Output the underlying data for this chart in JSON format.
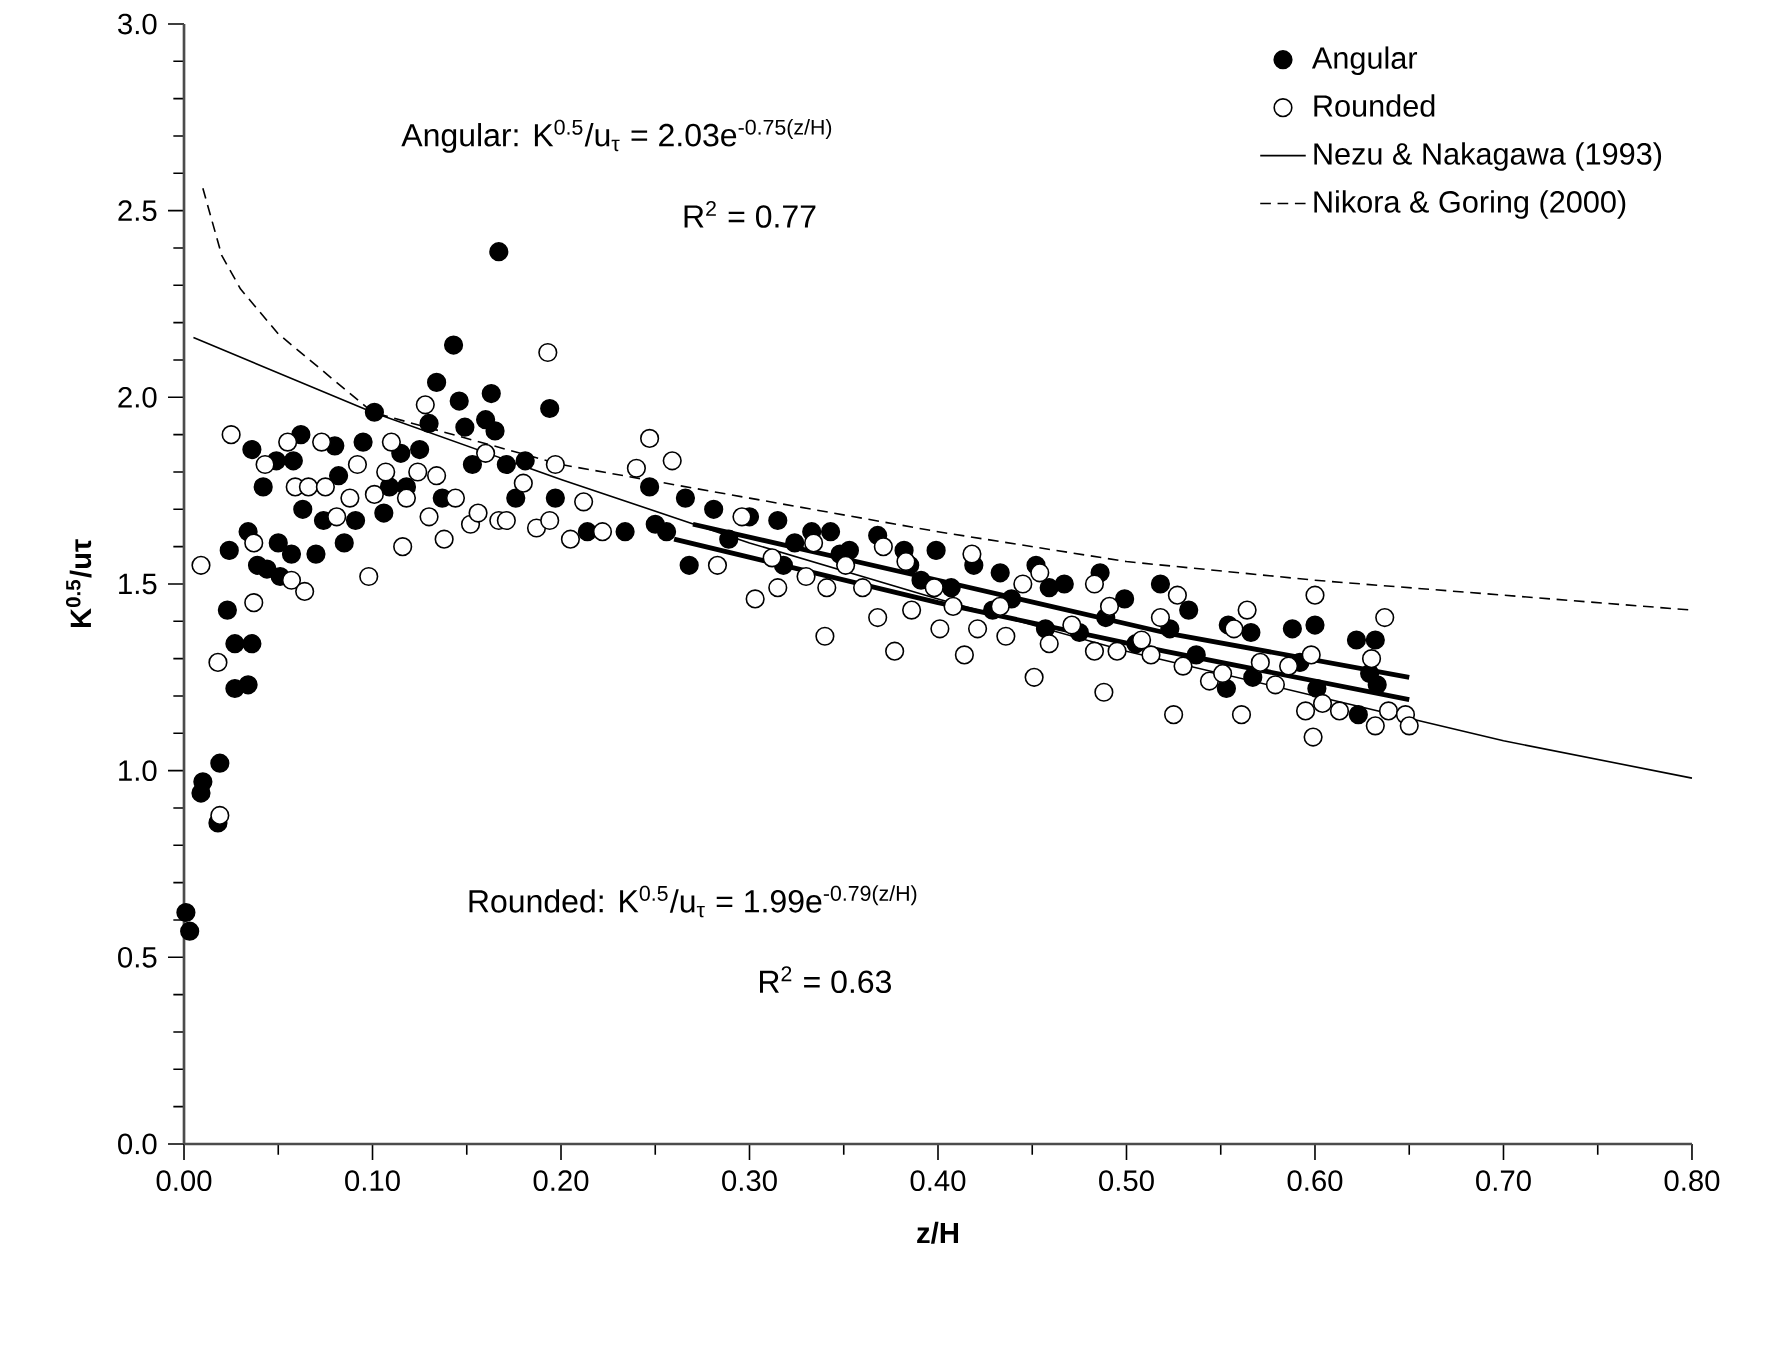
{
  "chart_data": {
    "type": "scatter",
    "xlabel": "z/H",
    "ylabel": "K$^{0.5}$/uτ",
    "xlim": [
      0,
      0.8
    ],
    "ylim": [
      0,
      3
    ],
    "xticks": [
      {
        "value": 0,
        "label": "0.00"
      },
      {
        "value": 0.1,
        "label": "0.10"
      },
      {
        "value": 0.2,
        "label": "0.20"
      },
      {
        "value": 0.3,
        "label": "0.30"
      },
      {
        "value": 0.4,
        "label": "0.40"
      },
      {
        "value": 0.5,
        "label": "0.50"
      },
      {
        "value": 0.6,
        "label": "0.60"
      },
      {
        "value": 0.7,
        "label": "0.70"
      },
      {
        "value": 0.8,
        "label": "0.80"
      }
    ],
    "yticks": [
      {
        "value": 0,
        "label": "0.0"
      },
      {
        "value": 0.5,
        "label": "0.5"
      },
      {
        "value": 1,
        "label": "1.0"
      },
      {
        "value": 1.5,
        "label": "1.5"
      },
      {
        "value": 2,
        "label": "2.0"
      },
      {
        "value": 2.5,
        "label": "2.5"
      },
      {
        "value": 3,
        "label": "3.0"
      }
    ],
    "grid": false,
    "legend": "top right",
    "annotations": [
      "Angular:  K$^{0.5}$/u$_{τ}$ = 2.03e$^{-0.75(z/H)}$",
      "R$^{2}$ = 0.77",
      "Rounded:  K$^{0.5}$/u$_{τ}$ = 1.99e$^{-0.79(z/H)}$",
      "R$^{2}$ = 0.63"
    ],
    "series": [
      {
        "name": "Angular",
        "type": "scatter",
        "marker": "circle",
        "color": "#000000",
        "x": [
          0.001,
          0.003,
          0.01,
          0.009,
          0.018,
          0.019,
          0.023,
          0.024,
          0.027,
          0.027,
          0.034,
          0.036,
          0.034,
          0.036,
          0.039,
          0.044,
          0.042,
          0.05,
          0.051,
          0.049,
          0.057,
          0.058,
          0.062,
          0.063,
          0.07,
          0.074,
          0.08,
          0.082,
          0.085,
          0.091,
          0.095,
          0.101,
          0.106,
          0.109,
          0.115,
          0.118,
          0.125,
          0.13,
          0.134,
          0.137,
          0.143,
          0.146,
          0.149,
          0.153,
          0.16,
          0.163,
          0.165,
          0.167,
          0.171,
          0.176,
          0.181,
          0.194,
          0.197,
          0.214,
          0.234,
          0.247,
          0.25,
          0.256,
          0.268,
          0.266,
          0.281,
          0.289,
          0.3,
          0.315,
          0.318,
          0.324,
          0.333,
          0.343,
          0.348,
          0.353,
          0.368,
          0.382,
          0.385,
          0.391,
          0.399,
          0.407,
          0.419,
          0.429,
          0.433,
          0.439,
          0.452,
          0.457,
          0.459,
          0.467,
          0.475,
          0.486,
          0.489,
          0.499,
          0.505,
          0.518,
          0.523,
          0.533,
          0.537,
          0.554,
          0.553,
          0.566,
          0.567,
          0.588,
          0.592,
          0.6,
          0.601,
          0.622,
          0.623,
          0.629,
          0.632,
          0.633
        ],
        "values": [
          0.62,
          0.57,
          0.97,
          0.94,
          0.86,
          1.02,
          1.43,
          1.59,
          1.34,
          1.22,
          1.23,
          1.34,
          1.64,
          1.86,
          1.55,
          1.54,
          1.76,
          1.61,
          1.52,
          1.83,
          1.58,
          1.83,
          1.9,
          1.7,
          1.58,
          1.67,
          1.87,
          1.79,
          1.61,
          1.67,
          1.88,
          1.96,
          1.69,
          1.76,
          1.85,
          1.76,
          1.86,
          1.93,
          2.04,
          1.73,
          2.14,
          1.99,
          1.92,
          1.82,
          1.94,
          2.01,
          1.91,
          2.39,
          1.82,
          1.73,
          1.83,
          1.97,
          1.73,
          1.64,
          1.64,
          1.76,
          1.66,
          1.64,
          1.55,
          1.73,
          1.7,
          1.62,
          1.68,
          1.67,
          1.55,
          1.61,
          1.64,
          1.64,
          1.58,
          1.59,
          1.63,
          1.59,
          1.55,
          1.51,
          1.59,
          1.49,
          1.55,
          1.43,
          1.53,
          1.46,
          1.55,
          1.38,
          1.49,
          1.5,
          1.37,
          1.53,
          1.41,
          1.46,
          1.34,
          1.5,
          1.38,
          1.43,
          1.31,
          1.39,
          1.22,
          1.37,
          1.25,
          1.38,
          1.29,
          1.39,
          1.22,
          1.35,
          1.15,
          1.26,
          1.35,
          1.23
        ]
      },
      {
        "name": "Rounded",
        "type": "scatter",
        "marker": "circle",
        "color": "#ffffff",
        "x": [
          0.009,
          0.018,
          0.019,
          0.025,
          0.037,
          0.037,
          0.043,
          0.055,
          0.057,
          0.059,
          0.064,
          0.066,
          0.073,
          0.075,
          0.081,
          0.088,
          0.092,
          0.098,
          0.101,
          0.107,
          0.11,
          0.116,
          0.118,
          0.124,
          0.128,
          0.13,
          0.134,
          0.138,
          0.144,
          0.152,
          0.156,
          0.16,
          0.167,
          0.171,
          0.18,
          0.187,
          0.193,
          0.194,
          0.197,
          0.205,
          0.212,
          0.222,
          0.24,
          0.247,
          0.259,
          0.283,
          0.296,
          0.303,
          0.312,
          0.315,
          0.33,
          0.334,
          0.341,
          0.34,
          0.351,
          0.36,
          0.368,
          0.371,
          0.377,
          0.383,
          0.386,
          0.398,
          0.401,
          0.408,
          0.414,
          0.418,
          0.421,
          0.433,
          0.436,
          0.445,
          0.451,
          0.454,
          0.459,
          0.471,
          0.483,
          0.483,
          0.488,
          0.491,
          0.495,
          0.508,
          0.513,
          0.518,
          0.525,
          0.527,
          0.53,
          0.544,
          0.551,
          0.557,
          0.561,
          0.564,
          0.571,
          0.579,
          0.586,
          0.595,
          0.598,
          0.6,
          0.599,
          0.604,
          0.613,
          0.63,
          0.632,
          0.637,
          0.639,
          0.648,
          0.65
        ],
        "values": [
          1.55,
          1.29,
          0.88,
          1.9,
          1.45,
          1.61,
          1.82,
          1.88,
          1.51,
          1.76,
          1.48,
          1.76,
          1.88,
          1.76,
          1.68,
          1.73,
          1.82,
          1.52,
          1.74,
          1.8,
          1.88,
          1.6,
          1.73,
          1.8,
          1.98,
          1.68,
          1.79,
          1.62,
          1.73,
          1.66,
          1.69,
          1.85,
          1.67,
          1.67,
          1.77,
          1.65,
          2.12,
          1.67,
          1.82,
          1.62,
          1.72,
          1.64,
          1.81,
          1.89,
          1.83,
          1.55,
          1.68,
          1.46,
          1.57,
          1.49,
          1.52,
          1.61,
          1.49,
          1.36,
          1.55,
          1.49,
          1.41,
          1.6,
          1.32,
          1.56,
          1.43,
          1.49,
          1.38,
          1.44,
          1.31,
          1.58,
          1.38,
          1.44,
          1.36,
          1.5,
          1.25,
          1.53,
          1.34,
          1.39,
          1.32,
          1.5,
          1.21,
          1.44,
          1.32,
          1.35,
          1.31,
          1.41,
          1.15,
          1.47,
          1.28,
          1.24,
          1.26,
          1.38,
          1.15,
          1.43,
          1.29,
          1.23,
          1.28,
          1.16,
          1.31,
          1.47,
          1.09,
          1.18,
          1.16,
          1.3,
          1.12,
          1.41,
          1.16,
          1.15,
          1.12
        ]
      },
      {
        "name": "Nezu & Nakagawa (1993)",
        "type": "line",
        "line_style": "solid",
        "color": "#000000",
        "x": [
          0.005,
          0.1,
          0.2,
          0.3,
          0.4,
          0.5,
          0.6,
          0.7,
          0.8
        ],
        "values": [
          2.16,
          1.96,
          1.78,
          1.61,
          1.46,
          1.32,
          1.2,
          1.08,
          0.98
        ]
      },
      {
        "name": "Nikora & Goring (2000)",
        "type": "line",
        "line_style": "dashed",
        "color": "#000000",
        "x": [
          0.01,
          0.02,
          0.03,
          0.05,
          0.1,
          0.2,
          0.3,
          0.4,
          0.5,
          0.6,
          0.7,
          0.8
        ],
        "values": [
          2.56,
          2.38,
          2.29,
          2.17,
          1.96,
          1.82,
          1.73,
          1.64,
          1.56,
          1.51,
          1.47,
          1.43
        ]
      },
      {
        "type": "line",
        "line_style": "solid",
        "color": "#000000",
        "x": [
          0.27,
          0.4,
          0.52,
          0.65
        ],
        "values": [
          1.66,
          1.51,
          1.37,
          1.25
        ]
      },
      {
        "type": "line",
        "line_style": "solid",
        "color": "#000000",
        "x": [
          0.26,
          0.4,
          0.52,
          0.65
        ],
        "values": [
          1.62,
          1.45,
          1.32,
          1.19
        ]
      }
    ]
  }
}
